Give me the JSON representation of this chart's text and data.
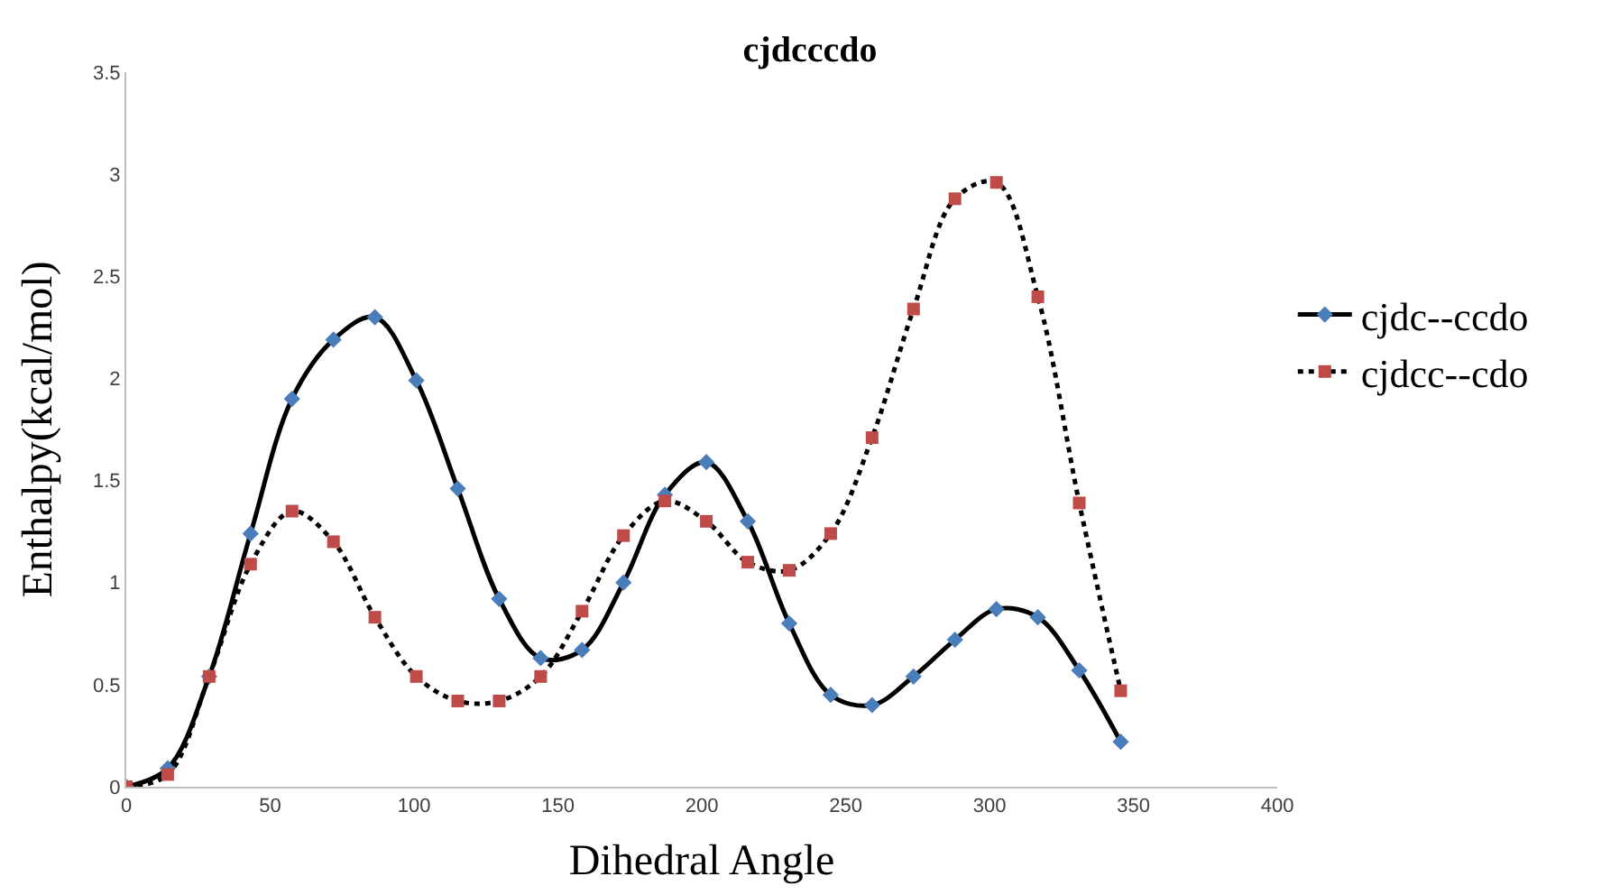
{
  "chart_data": {
    "type": "line",
    "title": "cjdcccdo",
    "xlabel": "Dihedral Angle",
    "ylabel": "Enthalpy(kcal/mol)",
    "x": [
      0,
      14.4,
      28.8,
      43.2,
      57.6,
      72,
      86.4,
      100.8,
      115.2,
      129.6,
      144,
      158.4,
      172.8,
      187.2,
      201.6,
      216,
      230.4,
      244.8,
      259.2,
      273.6,
      288,
      302.4,
      316.8,
      331.2,
      345.6
    ],
    "series": [
      {
        "name": "cjdc--ccdo",
        "color": "#4a7ebb",
        "marker": "diamond",
        "line_style": "solid",
        "values": [
          0,
          0.09,
          0.54,
          1.24,
          1.9,
          2.19,
          2.3,
          1.99,
          1.46,
          0.92,
          0.63,
          0.67,
          1.0,
          1.43,
          1.59,
          1.3,
          0.8,
          0.45,
          0.4,
          0.54,
          0.72,
          0.87,
          0.83,
          0.57,
          0.22
        ]
      },
      {
        "name": "cjdcc--cdo",
        "color": "#be4b48",
        "marker": "square",
        "line_style": "dotted",
        "values": [
          0,
          0.06,
          0.54,
          1.09,
          1.35,
          1.2,
          0.83,
          0.54,
          0.42,
          0.42,
          0.54,
          0.86,
          1.23,
          1.4,
          1.3,
          1.1,
          1.06,
          1.24,
          1.71,
          2.34,
          2.88,
          2.96,
          2.4,
          1.39,
          0.47
        ]
      }
    ],
    "xlim": [
      0,
      400
    ],
    "xticks": [
      0,
      50,
      100,
      150,
      200,
      250,
      300,
      350,
      400
    ],
    "ylim": [
      0,
      3.5
    ],
    "yticks": [
      0,
      0.5,
      1,
      1.5,
      2,
      2.5,
      3,
      3.5
    ],
    "grid": false,
    "legend": "right"
  }
}
